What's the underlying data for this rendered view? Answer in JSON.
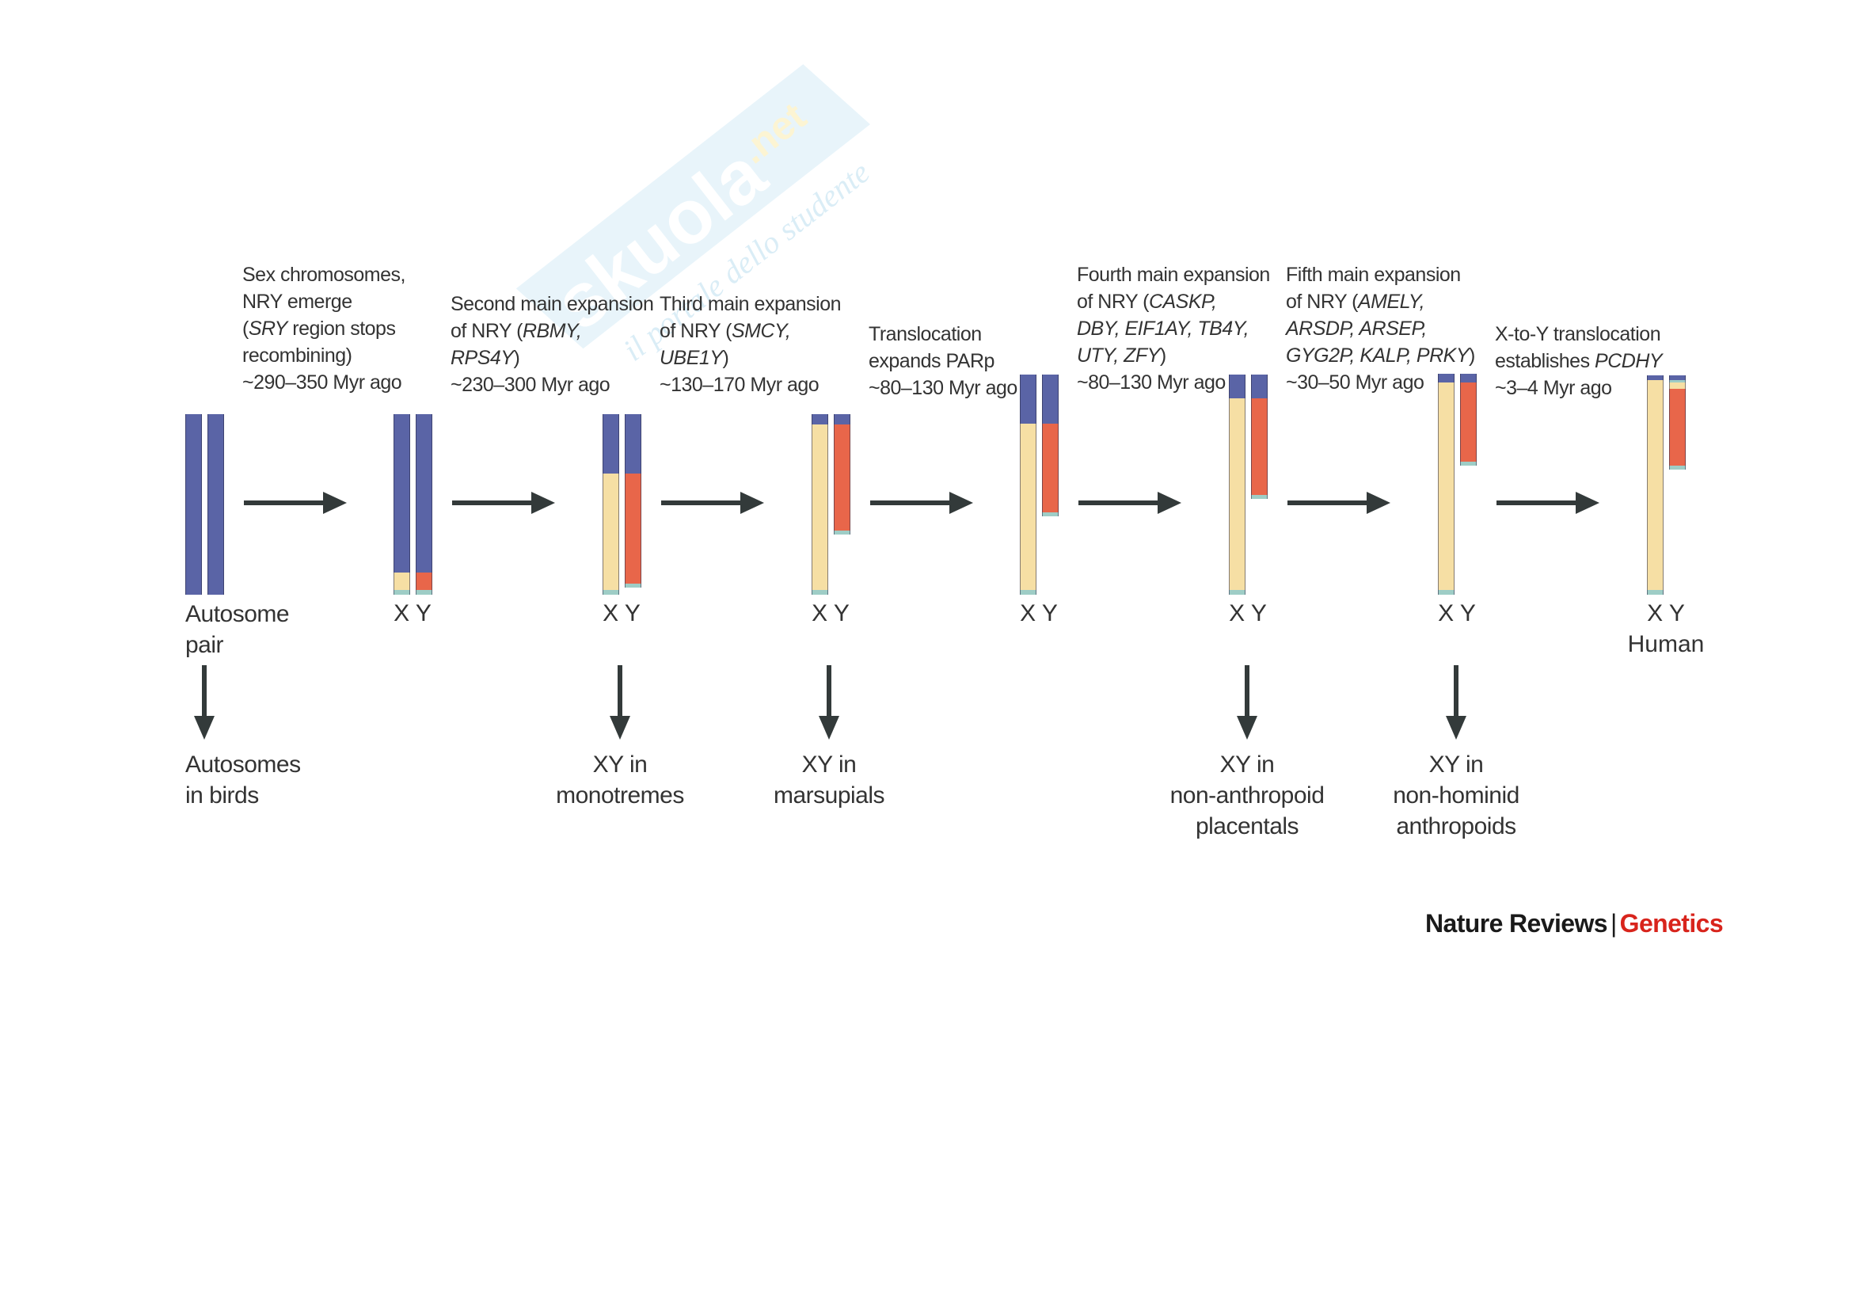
{
  "stages": [
    {
      "id": "s0",
      "heading": [],
      "chrom_label": [
        "Autosome",
        "pair"
      ],
      "outcome": [
        "Autosomes",
        "in birds"
      ]
    },
    {
      "id": "s1",
      "heading": [
        [
          {
            "t": "Sex chromosomes,"
          }
        ],
        [
          {
            "t": "NRY emerge"
          }
        ],
        [
          {
            "t": "("
          },
          {
            "t": "SRY",
            "i": true
          },
          {
            "t": " region stops"
          }
        ],
        [
          {
            "t": "recombining)"
          }
        ],
        [
          {
            "t": "~290–350 Myr ago"
          }
        ]
      ],
      "chrom_label": [
        "X Y"
      ],
      "outcome": []
    },
    {
      "id": "s2",
      "heading": [
        [
          {
            "t": "Second main expansion"
          }
        ],
        [
          {
            "t": "of NRY ("
          },
          {
            "t": "RBMY,",
            "i": true
          }
        ],
        [
          {
            "t": "RPS4Y",
            "i": true
          },
          {
            "t": ")"
          }
        ],
        [
          {
            "t": "~230–300 Myr ago"
          }
        ]
      ],
      "chrom_label": [
        "X Y"
      ],
      "outcome": [
        "XY in",
        "monotremes"
      ]
    },
    {
      "id": "s3",
      "heading": [
        [
          {
            "t": "Third main expansion"
          }
        ],
        [
          {
            "t": "of NRY ("
          },
          {
            "t": "SMCY,",
            "i": true
          }
        ],
        [
          {
            "t": "UBE1Y",
            "i": true
          },
          {
            "t": ")"
          }
        ],
        [
          {
            "t": "~130–170 Myr ago"
          }
        ]
      ],
      "chrom_label": [
        "X Y"
      ],
      "outcome": [
        "XY in",
        "marsupials"
      ]
    },
    {
      "id": "s4",
      "heading": [
        [
          {
            "t": "Translocation"
          }
        ],
        [
          {
            "t": "expands PARp"
          }
        ],
        [
          {
            "t": "~80–130 Myr ago"
          }
        ]
      ],
      "chrom_label": [
        "X Y"
      ],
      "outcome": []
    },
    {
      "id": "s5",
      "heading": [
        [
          {
            "t": "Fourth main expansion"
          }
        ],
        [
          {
            "t": "of NRY ("
          },
          {
            "t": "CASKP,",
            "i": true
          }
        ],
        [
          {
            "t": "DBY, EIF1AY, TB4Y,",
            "i": true
          }
        ],
        [
          {
            "t": "UTY, ZFY",
            "i": true
          },
          {
            "t": ")"
          }
        ],
        [
          {
            "t": "~80–130 Myr ago"
          }
        ]
      ],
      "chrom_label": [
        "X Y"
      ],
      "outcome": [
        "XY in",
        "non-anthropoid",
        "placentals"
      ]
    },
    {
      "id": "s6",
      "heading": [
        [
          {
            "t": "Fifth main expansion"
          }
        ],
        [
          {
            "t": "of NRY ("
          },
          {
            "t": "AMELY,",
            "i": true
          }
        ],
        [
          {
            "t": "ARSDP, ARSEP,",
            "i": true
          }
        ],
        [
          {
            "t": "GYG2P, KALP, PRKY",
            "i": true
          },
          {
            "t": ")"
          }
        ],
        [
          {
            "t": "~30–50 Myr ago"
          }
        ]
      ],
      "chrom_label": [
        "X Y"
      ],
      "outcome": [
        "XY in",
        "non-hominid",
        "anthropoids"
      ]
    },
    {
      "id": "s7",
      "heading": [
        [
          {
            "t": "X-to-Y translocation"
          }
        ],
        [
          {
            "t": "establishes "
          },
          {
            "t": "PCDHY",
            "i": true
          }
        ],
        [
          {
            "t": "~3–4 Myr ago"
          }
        ]
      ],
      "chrom_label": [
        "X Y",
        "Human"
      ],
      "outcome": []
    }
  ],
  "colors": {
    "blue": "#5a64a6",
    "yellow": "#f6dfa4",
    "red": "#e8664a",
    "teal": "#9ecdc6",
    "arrow": "#333a3a"
  },
  "watermark": {
    "brand": "skuola",
    "tld": ".net",
    "tagline": "il portale dello studente"
  },
  "credit": {
    "journal": "Nature Reviews",
    "separator": "|",
    "section": "Genetics"
  }
}
